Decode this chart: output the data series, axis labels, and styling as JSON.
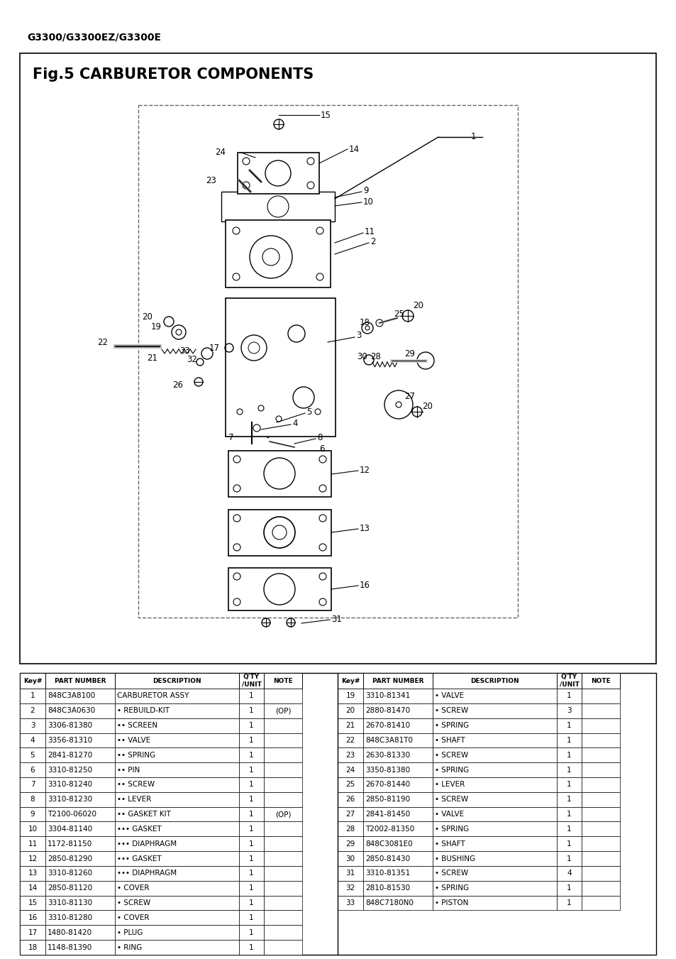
{
  "page_title": "G3300/G3300EZ/G3300E",
  "fig_title": "Fig.5 CARBURETOR COMPONENTS",
  "bg_color": "#ffffff",
  "table_header": [
    "Key#",
    "PART NUMBER",
    "DESCRIPTION",
    "Q'TY\n/UNIT",
    "NOTE"
  ],
  "rows_left": [
    [
      "1",
      "848C3A8100",
      "CARBURETOR ASSY",
      "1",
      ""
    ],
    [
      "2",
      "848C3A0630",
      "• REBUILD-KIT",
      "1",
      "(OP)"
    ],
    [
      "3",
      "3306-81380",
      "•• SCREEN",
      "1",
      ""
    ],
    [
      "4",
      "3356-81310",
      "•• VALVE",
      "1",
      ""
    ],
    [
      "5",
      "2841-81270",
      "•• SPRING",
      "1",
      ""
    ],
    [
      "6",
      "3310-81250",
      "•• PIN",
      "1",
      ""
    ],
    [
      "7",
      "3310-81240",
      "•• SCREW",
      "1",
      ""
    ],
    [
      "8",
      "3310-81230",
      "•• LEVER",
      "1",
      ""
    ],
    [
      "9",
      "T2100-06020",
      "•• GASKET KIT",
      "1",
      "(OP)"
    ],
    [
      "10",
      "3304-81140",
      "••• GASKET",
      "1",
      ""
    ],
    [
      "11",
      "1172-81150",
      "••• DIAPHRAGM",
      "1",
      ""
    ],
    [
      "12",
      "2850-81290",
      "••• GASKET",
      "1",
      ""
    ],
    [
      "13",
      "3310-81260",
      "••• DIAPHRAGM",
      "1",
      ""
    ],
    [
      "14",
      "2850-81120",
      "• COVER",
      "1",
      ""
    ],
    [
      "15",
      "3310-81130",
      "• SCREW",
      "1",
      ""
    ],
    [
      "16",
      "3310-81280",
      "• COVER",
      "1",
      ""
    ],
    [
      "17",
      "1480-81420",
      "• PLUG",
      "1",
      ""
    ],
    [
      "18",
      "1148-81390",
      "• RING",
      "1",
      ""
    ]
  ],
  "rows_right": [
    [
      "19",
      "3310-81341",
      "• VALVE",
      "1",
      ""
    ],
    [
      "20",
      "2880-81470",
      "• SCREW",
      "3",
      ""
    ],
    [
      "21",
      "2670-81410",
      "• SPRING",
      "1",
      ""
    ],
    [
      "22",
      "848C3A81T0",
      "• SHAFT",
      "1",
      ""
    ],
    [
      "23",
      "2630-81330",
      "• SCREW",
      "1",
      ""
    ],
    [
      "24",
      "3350-81380",
      "• SPRING",
      "1",
      ""
    ],
    [
      "25",
      "2670-81440",
      "• LEVER",
      "1",
      ""
    ],
    [
      "26",
      "2850-81190",
      "• SCREW",
      "1",
      ""
    ],
    [
      "27",
      "2841-81450",
      "• VALVE",
      "1",
      ""
    ],
    [
      "28",
      "T2002-81350",
      "• SPRING",
      "1",
      ""
    ],
    [
      "29",
      "848C3081E0",
      "• SHAFT",
      "1",
      ""
    ],
    [
      "30",
      "2850-81430",
      "• BUSHING",
      "1",
      ""
    ],
    [
      "31",
      "3310-81351",
      "• SCREW",
      "4",
      ""
    ],
    [
      "32",
      "2810-81530",
      "• SPRING",
      "1",
      ""
    ],
    [
      "33",
      "848C7180N0",
      "• PISTON",
      "1",
      ""
    ]
  ]
}
